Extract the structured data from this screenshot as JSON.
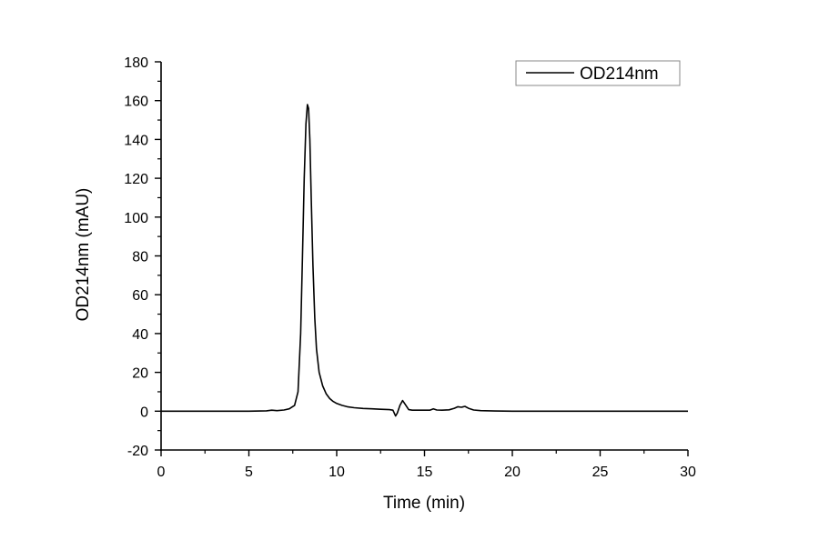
{
  "chart_data": {
    "type": "line",
    "title": "",
    "xlabel": "Time (min)",
    "ylabel": "OD214nm (mAU)",
    "xlim": [
      0,
      30
    ],
    "ylim": [
      -20,
      180
    ],
    "xticks": [
      0,
      5,
      10,
      15,
      20,
      25,
      30
    ],
    "xtick_labels": [
      "0",
      "5",
      "10",
      "15",
      "20",
      "25",
      "30"
    ],
    "yticks": [
      -20,
      0,
      20,
      40,
      60,
      80,
      100,
      120,
      140,
      160,
      180
    ],
    "ytick_labels": [
      "-20",
      "0",
      "20",
      "40",
      "60",
      "80",
      "100",
      "120",
      "140",
      "160",
      "180"
    ],
    "grid": false,
    "legend_position": "upper right",
    "series": [
      {
        "name": "OD214nm",
        "color": "#000000",
        "x": [
          0,
          5,
          6.0,
          6.3,
          6.6,
          7.0,
          7.3,
          7.6,
          7.8,
          7.95,
          8.05,
          8.15,
          8.25,
          8.33,
          8.4,
          8.47,
          8.55,
          8.65,
          8.75,
          8.85,
          9.0,
          9.2,
          9.4,
          9.6,
          9.8,
          10.0,
          10.3,
          10.6,
          11.0,
          11.5,
          12.0,
          12.5,
          13.0,
          13.2,
          13.35,
          13.45,
          13.6,
          13.75,
          13.9,
          14.1,
          14.3,
          14.6,
          15.0,
          15.3,
          15.5,
          15.7,
          16.0,
          16.4,
          16.7,
          16.9,
          17.1,
          17.3,
          17.5,
          17.8,
          18.2,
          19.0,
          20.0,
          25.0,
          30.0
        ],
        "values": [
          0,
          0,
          0.2,
          0.5,
          0.3,
          0.6,
          1.2,
          3.0,
          10,
          40,
          80,
          120,
          148,
          158,
          156,
          140,
          110,
          75,
          48,
          32,
          20,
          13,
          9,
          6.5,
          5,
          4,
          3,
          2.3,
          1.8,
          1.4,
          1.2,
          1.0,
          0.8,
          0.5,
          -2.5,
          -1.0,
          3.0,
          5.5,
          3.5,
          0.8,
          0.5,
          0.5,
          0.5,
          0.5,
          1.2,
          0.6,
          0.5,
          0.7,
          1.5,
          2.3,
          2.0,
          2.5,
          1.5,
          0.6,
          0.3,
          0.1,
          0,
          0,
          0
        ]
      }
    ],
    "annotations": []
  }
}
